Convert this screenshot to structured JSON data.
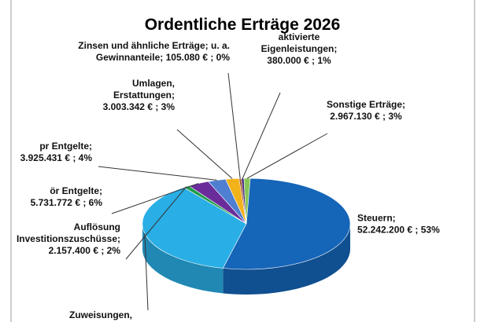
{
  "chart_data": {
    "type": "pie",
    "title": "Ordentliche Erträge 2026",
    "slices": [
      {
        "name": "Steuern",
        "value": 52242200,
        "percent": "53%",
        "label_lines": [
          "Steuern;",
          "52.242.200 € ; 53%"
        ],
        "color": "#1565b8"
      },
      {
        "name": "Zuweisungen",
        "value": null,
        "percent": "",
        "label_lines": [
          "Zuweisungen,"
        ],
        "color": "#29aee6"
      },
      {
        "name": "Auflösung Investitionszuschüsse",
        "value": 2157400,
        "percent": "2%",
        "label_lines": [
          "Auflösung",
          "Investitionszuschüsse;",
          "2.157.400 € ; 2%"
        ],
        "color": "#1f9e4a"
      },
      {
        "name": "ör Entgelte",
        "value": 5731772,
        "percent": "6%",
        "label_lines": [
          "ör Entgelte;",
          "5.731.772 € ; 6%"
        ],
        "color": "#6a2c9a"
      },
      {
        "name": "pr Entgelte",
        "value": 3925431,
        "percent": "4%",
        "label_lines": [
          "pr Entgelte;",
          "3.925.431 € ; 4%"
        ],
        "color": "#4f7fd0"
      },
      {
        "name": "Umlagen, Erstattungen",
        "value": 3003342,
        "percent": "3%",
        "label_lines": [
          "Umlagen,",
          "Erstattungen;",
          "3.003.342 € ; 3%"
        ],
        "color": "#f2b21a"
      },
      {
        "name": "Zinsen und ähnliche Erträge; u. a. Gewinnanteile",
        "value": 105080,
        "percent": "0%",
        "label_lines": [
          "Zinsen und ähnliche Erträge; u. a.",
          "Gewinnanteile;  105.080 € ; 0%"
        ],
        "color": "#9b4a1f"
      },
      {
        "name": "aktivierte Eigenleistungen",
        "value": 380000,
        "percent": "1%",
        "label_lines": [
          "aktivierte",
          "Eigenleistungen;",
          "380.000 € ; 1%"
        ],
        "color": "#4a2e7a"
      },
      {
        "name": "Sonstige Erträge",
        "value": 2967130,
        "percent": "3%",
        "label_lines": [
          "Sonstige Erträge;",
          "2.967.130 € ; 3%"
        ],
        "color": "#86c657"
      }
    ]
  }
}
